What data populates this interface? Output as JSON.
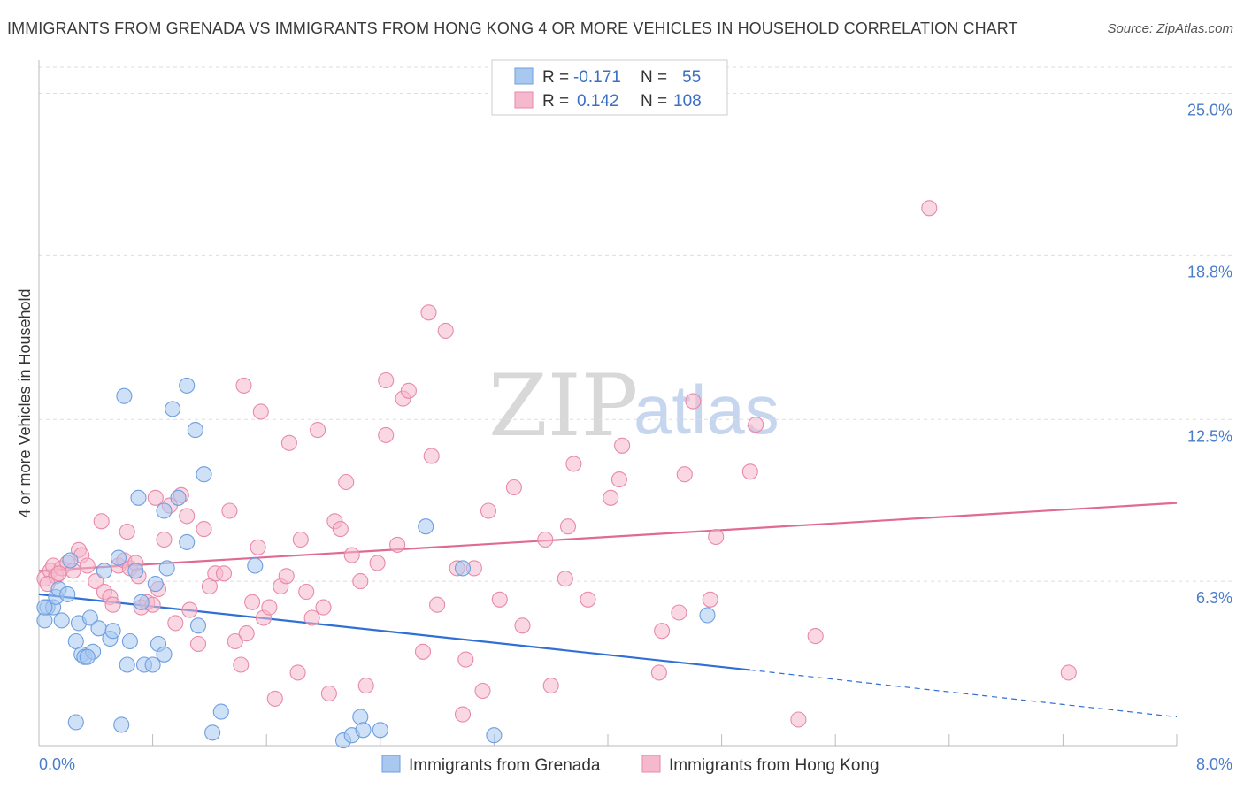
{
  "title": "IMMIGRANTS FROM GRENADA VS IMMIGRANTS FROM HONG KONG 4 OR MORE VEHICLES IN HOUSEHOLD CORRELATION CHART",
  "source": "Source: ZipAtlas.com",
  "watermark": {
    "zip": "ZIP",
    "atlas": "atlas"
  },
  "legend": {
    "r_label": "R =",
    "n_label": "N =",
    "rows": [
      {
        "r": "-0.171",
        "n": "55",
        "color": "#a8c8f0"
      },
      {
        "r": "0.142",
        "n": "108",
        "color": "#f5b8cc"
      }
    ]
  },
  "chart_data": {
    "type": "scatter",
    "title": "IMMIGRANTS FROM GRENADA VS IMMIGRANTS FROM HONG KONG 4 OR MORE VEHICLES IN HOUSEHOLD CORRELATION CHART",
    "xlabel": "",
    "ylabel": "4 or more Vehicles in Household",
    "xlim": [
      0,
      8.0
    ],
    "ylim": [
      0,
      26.0
    ],
    "x_tick_labels": [
      "0.0%",
      "8.0%"
    ],
    "y_ticks": [
      6.3,
      12.5,
      18.8,
      25.0
    ],
    "y_tick_labels": [
      "6.3%",
      "12.5%",
      "18.8%",
      "25.0%"
    ],
    "grid": true,
    "legend_position": "top-center",
    "series": [
      {
        "name": "Immigrants from Grenada",
        "color": "#a8c8f0",
        "stroke": "#6f9ee0",
        "r": -0.171,
        "n": 55,
        "trend": {
          "x0": 0.0,
          "y0": 5.8,
          "x1": 5.0,
          "y1": 2.9,
          "dash_to_x": 8.0,
          "dash_to_y": 1.1
        },
        "points": [
          [
            0.04,
            4.8
          ],
          [
            0.06,
            5.3
          ],
          [
            0.1,
            5.3
          ],
          [
            0.12,
            5.7
          ],
          [
            0.14,
            6.0
          ],
          [
            0.16,
            4.8
          ],
          [
            0.2,
            5.8
          ],
          [
            0.22,
            7.1
          ],
          [
            0.26,
            4.0
          ],
          [
            0.28,
            4.7
          ],
          [
            0.3,
            3.5
          ],
          [
            0.32,
            3.4
          ],
          [
            0.36,
            4.9
          ],
          [
            0.38,
            3.6
          ],
          [
            0.42,
            4.5
          ],
          [
            0.46,
            6.7
          ],
          [
            0.5,
            4.1
          ],
          [
            0.52,
            4.4
          ],
          [
            0.56,
            7.2
          ],
          [
            0.6,
            13.4
          ],
          [
            0.62,
            3.1
          ],
          [
            0.64,
            4.0
          ],
          [
            0.68,
            6.7
          ],
          [
            0.7,
            9.5
          ],
          [
            0.72,
            5.5
          ],
          [
            0.74,
            3.1
          ],
          [
            0.8,
            3.1
          ],
          [
            0.82,
            6.2
          ],
          [
            0.84,
            3.9
          ],
          [
            0.88,
            3.5
          ],
          [
            0.88,
            9.0
          ],
          [
            0.9,
            6.8
          ],
          [
            0.94,
            12.9
          ],
          [
            0.98,
            9.5
          ],
          [
            1.04,
            13.8
          ],
          [
            1.04,
            7.8
          ],
          [
            1.1,
            12.1
          ],
          [
            1.16,
            10.4
          ],
          [
            1.12,
            4.6
          ],
          [
            1.22,
            0.5
          ],
          [
            1.28,
            1.3
          ],
          [
            1.52,
            6.9
          ],
          [
            2.14,
            0.2
          ],
          [
            2.2,
            0.4
          ],
          [
            2.26,
            1.1
          ],
          [
            2.28,
            0.6
          ],
          [
            2.4,
            0.6
          ],
          [
            2.72,
            8.4
          ],
          [
            2.98,
            6.8
          ],
          [
            3.2,
            0.4
          ],
          [
            4.7,
            5.0
          ],
          [
            0.26,
            0.9
          ],
          [
            0.58,
            0.8
          ],
          [
            0.04,
            5.3
          ],
          [
            0.34,
            3.4
          ]
        ]
      },
      {
        "name": "Immigrants from Hong Kong",
        "color": "#f5b8cc",
        "stroke": "#e88aa8",
        "r": 0.142,
        "n": 108,
        "trend": {
          "x0": 0.0,
          "y0": 6.7,
          "x1": 8.0,
          "y1": 9.3
        },
        "points": [
          [
            0.04,
            6.4
          ],
          [
            0.08,
            6.7
          ],
          [
            0.1,
            6.9
          ],
          [
            0.12,
            6.5
          ],
          [
            0.16,
            6.8
          ],
          [
            0.2,
            7.0
          ],
          [
            0.24,
            6.7
          ],
          [
            0.28,
            7.5
          ],
          [
            0.3,
            7.3
          ],
          [
            0.34,
            6.9
          ],
          [
            0.4,
            6.3
          ],
          [
            0.44,
            8.6
          ],
          [
            0.46,
            5.9
          ],
          [
            0.5,
            5.7
          ],
          [
            0.52,
            5.4
          ],
          [
            0.56,
            6.9
          ],
          [
            0.6,
            7.1
          ],
          [
            0.62,
            8.2
          ],
          [
            0.64,
            6.8
          ],
          [
            0.68,
            7.0
          ],
          [
            0.7,
            6.5
          ],
          [
            0.72,
            5.3
          ],
          [
            0.76,
            5.5
          ],
          [
            0.8,
            5.4
          ],
          [
            0.82,
            9.5
          ],
          [
            0.84,
            6.0
          ],
          [
            0.88,
            7.9
          ],
          [
            0.92,
            9.2
          ],
          [
            0.96,
            4.7
          ],
          [
            1.0,
            9.6
          ],
          [
            1.04,
            8.8
          ],
          [
            1.06,
            5.2
          ],
          [
            1.12,
            3.9
          ],
          [
            1.16,
            8.3
          ],
          [
            1.2,
            6.1
          ],
          [
            1.24,
            6.6
          ],
          [
            1.3,
            6.6
          ],
          [
            1.34,
            9.0
          ],
          [
            1.38,
            4.0
          ],
          [
            1.42,
            3.1
          ],
          [
            1.44,
            13.8
          ],
          [
            1.46,
            4.3
          ],
          [
            1.5,
            5.5
          ],
          [
            1.54,
            7.6
          ],
          [
            1.56,
            12.8
          ],
          [
            1.58,
            4.9
          ],
          [
            1.62,
            5.3
          ],
          [
            1.66,
            1.8
          ],
          [
            1.7,
            6.1
          ],
          [
            1.74,
            6.5
          ],
          [
            1.76,
            11.6
          ],
          [
            1.82,
            2.8
          ],
          [
            1.84,
            7.9
          ],
          [
            1.88,
            5.9
          ],
          [
            1.92,
            4.9
          ],
          [
            1.96,
            12.1
          ],
          [
            2.0,
            5.3
          ],
          [
            2.04,
            2.0
          ],
          [
            2.08,
            8.6
          ],
          [
            2.12,
            8.3
          ],
          [
            2.16,
            10.1
          ],
          [
            2.2,
            7.3
          ],
          [
            2.26,
            6.3
          ],
          [
            2.3,
            2.3
          ],
          [
            2.38,
            7.0
          ],
          [
            2.44,
            11.9
          ],
          [
            2.44,
            14.0
          ],
          [
            2.52,
            7.7
          ],
          [
            2.56,
            13.3
          ],
          [
            2.6,
            13.6
          ],
          [
            2.7,
            3.6
          ],
          [
            2.74,
            16.6
          ],
          [
            2.76,
            11.1
          ],
          [
            2.8,
            5.4
          ],
          [
            2.86,
            15.9
          ],
          [
            2.94,
            6.8
          ],
          [
            2.98,
            1.2
          ],
          [
            3.0,
            3.3
          ],
          [
            3.06,
            6.8
          ],
          [
            3.12,
            2.1
          ],
          [
            3.16,
            9.0
          ],
          [
            3.24,
            5.6
          ],
          [
            3.34,
            9.9
          ],
          [
            3.4,
            4.6
          ],
          [
            3.56,
            7.9
          ],
          [
            3.6,
            2.3
          ],
          [
            3.7,
            6.4
          ],
          [
            3.72,
            8.4
          ],
          [
            3.76,
            10.8
          ],
          [
            3.86,
            5.6
          ],
          [
            4.02,
            9.5
          ],
          [
            4.08,
            10.2
          ],
          [
            4.1,
            11.5
          ],
          [
            4.36,
            2.8
          ],
          [
            4.38,
            4.4
          ],
          [
            4.5,
            5.1
          ],
          [
            4.54,
            10.4
          ],
          [
            4.6,
            13.2
          ],
          [
            4.72,
            5.6
          ],
          [
            4.76,
            8.0
          ],
          [
            5.0,
            10.5
          ],
          [
            5.04,
            12.3
          ],
          [
            5.34,
            1.0
          ],
          [
            5.46,
            4.2
          ],
          [
            6.26,
            20.6
          ],
          [
            7.24,
            2.8
          ],
          [
            0.06,
            6.2
          ],
          [
            0.14,
            6.6
          ]
        ]
      }
    ]
  }
}
